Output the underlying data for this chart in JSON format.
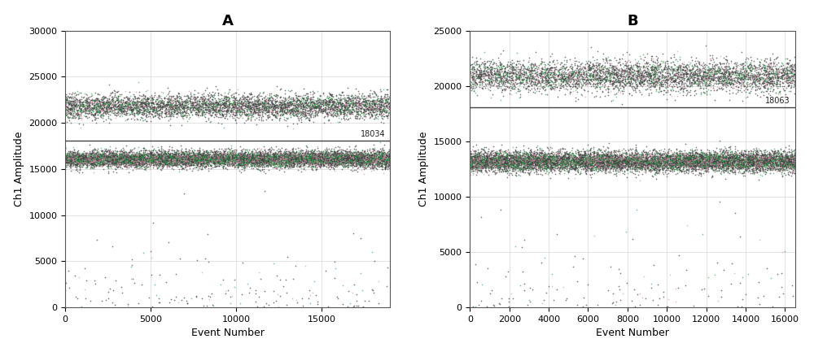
{
  "panel_A": {
    "title": "A",
    "xlabel": "Event Number",
    "ylabel": "Ch1 Amplitude",
    "xlim": [
      0,
      19000
    ],
    "ylim": [
      0,
      30000
    ],
    "xticks": [
      0,
      5000,
      10000,
      15000
    ],
    "yticks": [
      0,
      5000,
      10000,
      15000,
      20000,
      25000,
      30000
    ],
    "threshold": 18034,
    "threshold_label": "18034",
    "upper_cluster_mean": 21800,
    "upper_cluster_std": 650,
    "upper_cluster_count": 5500,
    "lower_cluster_mean": 16100,
    "lower_cluster_std": 450,
    "lower_cluster_count": 10000,
    "outlier_count": 180
  },
  "panel_B": {
    "title": "B",
    "xlabel": "Event Number",
    "ylabel": "Ch1 Amplitude",
    "xlim": [
      0,
      16500
    ],
    "ylim": [
      0,
      25000
    ],
    "xticks": [
      0,
      2000,
      4000,
      6000,
      8000,
      10000,
      12000,
      14000,
      16000
    ],
    "yticks": [
      0,
      5000,
      10000,
      15000,
      20000,
      25000
    ],
    "threshold": 18063,
    "threshold_label": "18063",
    "upper_cluster_mean": 20900,
    "upper_cluster_std": 700,
    "upper_cluster_count": 5000,
    "lower_cluster_mean": 13200,
    "lower_cluster_std": 450,
    "lower_cluster_count": 10500,
    "outlier_count": 150
  },
  "dot_color_dark": "#444444",
  "dot_color_green": "#22aa44",
  "dot_color_pink": "#dd88aa",
  "dot_size": 1.5,
  "line_color": "#444444",
  "line_width": 1.0,
  "bg_color": "#ffffff",
  "grid_major_color": "#aaaaaa",
  "pink_dot_color": "#ffaacc",
  "title_fontsize": 13,
  "label_fontsize": 9,
  "tick_fontsize": 8
}
